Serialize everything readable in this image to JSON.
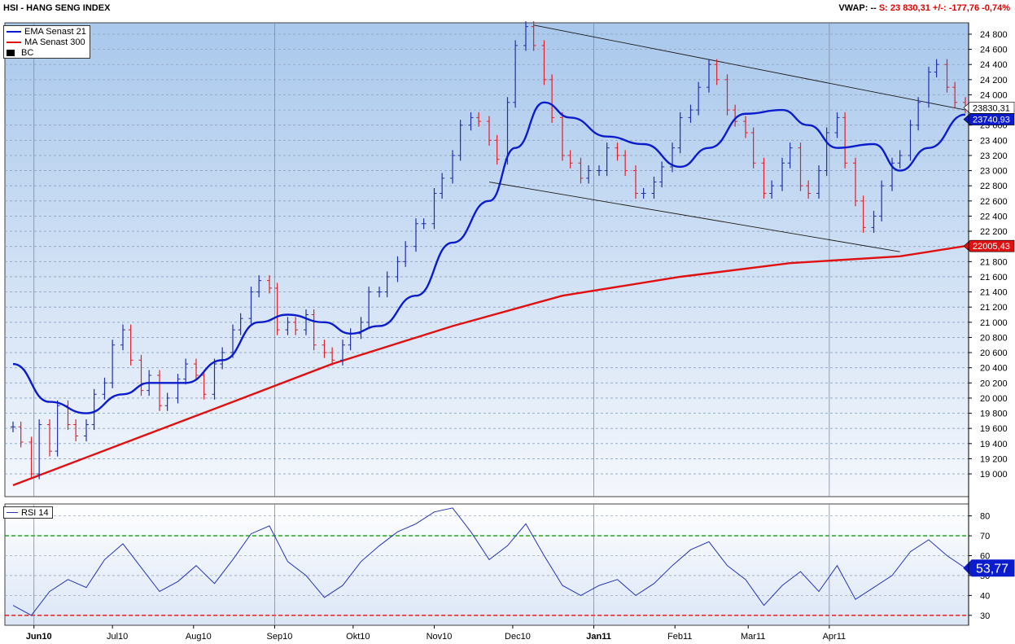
{
  "header": {
    "title": "HSI - HANG SENG INDEX",
    "vwap_label": "VWAP: --",
    "last_label": "S: 23 830,31",
    "change_label": "+/-: -177,76",
    "change_pct": "-0,74%"
  },
  "legend": {
    "ema_label": "EMA  Senast 21",
    "ma_label": "MA  Senast 300",
    "bc_label": "BC",
    "rsi_label": "RSI  14"
  },
  "colors": {
    "plot_top": "#a9c8ec",
    "plot_bottom": "#f4f7fc",
    "up_bar": "#1f2fa8",
    "down_bar": "#e0202a",
    "ema": "#0b1ccc",
    "ma": "#e01010",
    "rsi_line": "#2435b5",
    "overbought": "#149a14",
    "oversold": "#e01010"
  },
  "chart_data": [
    {
      "type": "line",
      "title": "HSI - HANG SENG INDEX",
      "x_tick_labels": [
        "Jun10",
        "Jul10",
        "Aug10",
        "Sep10",
        "Okt10",
        "Nov10",
        "Dec10",
        "Jan11",
        "Feb11",
        "Mar11",
        "Apr11"
      ],
      "y_ticks": [
        19000,
        19200,
        19400,
        19600,
        19800,
        20000,
        20200,
        20400,
        20600,
        20800,
        21000,
        21200,
        21400,
        21600,
        21800,
        22000,
        22200,
        22400,
        22600,
        22800,
        23000,
        23200,
        23400,
        23600,
        23800,
        24000,
        24200,
        24400,
        24600,
        24800
      ],
      "y_tick_labels": [
        "19 000",
        "19 200",
        "19 400",
        "19 600",
        "19 800",
        "20 000",
        "20 200",
        "20 400",
        "20 600",
        "20 800",
        "21 000",
        "21 200",
        "21 400",
        "21 600",
        "21 800",
        "22 000",
        "22 200",
        "22 400",
        "22 600",
        "22 800",
        "23 000",
        "23 200",
        "23 400",
        "23 600",
        "23 800",
        "24 000",
        "24 200",
        "24 400",
        "24 600",
        "24 800"
      ],
      "ylim": [
        18700,
        24950
      ],
      "grid": true,
      "close_series": {
        "name": "HSI",
        "style": "bar (high-low, open/close ticks)",
        "points": [
          [
            "2010-05-24",
            19620
          ],
          [
            "2010-05-27",
            19420
          ],
          [
            "2010-05-31",
            19000
          ],
          [
            "2010-06-03",
            19650
          ],
          [
            "2010-06-07",
            19300
          ],
          [
            "2010-06-10",
            19900
          ],
          [
            "2010-06-14",
            19650
          ],
          [
            "2010-06-17",
            19500
          ],
          [
            "2010-06-21",
            19650
          ],
          [
            "2010-06-24",
            20050
          ],
          [
            "2010-06-28",
            20200
          ],
          [
            "2010-07-01",
            20700
          ],
          [
            "2010-07-05",
            20900
          ],
          [
            "2010-07-08",
            20500
          ],
          [
            "2010-07-12",
            20100
          ],
          [
            "2010-07-15",
            20300
          ],
          [
            "2010-07-19",
            19900
          ],
          [
            "2010-07-22",
            20000
          ],
          [
            "2010-07-26",
            20250
          ],
          [
            "2010-07-29",
            20450
          ],
          [
            "2010-08-02",
            20300
          ],
          [
            "2010-08-05",
            20050
          ],
          [
            "2010-08-09",
            20450
          ],
          [
            "2010-08-12",
            20600
          ],
          [
            "2010-08-16",
            20900
          ],
          [
            "2010-08-19",
            21050
          ],
          [
            "2010-08-23",
            21400
          ],
          [
            "2010-08-26",
            21550
          ],
          [
            "2010-08-30",
            21450
          ],
          [
            "2010-09-02",
            20900
          ],
          [
            "2010-09-06",
            21000
          ],
          [
            "2010-09-09",
            20900
          ],
          [
            "2010-09-13",
            21100
          ],
          [
            "2010-09-16",
            20700
          ],
          [
            "2010-09-20",
            20600
          ],
          [
            "2010-09-23",
            20500
          ],
          [
            "2010-09-27",
            20700
          ],
          [
            "2010-09-30",
            20850
          ],
          [
            "2010-10-04",
            21000
          ],
          [
            "2010-10-07",
            21400
          ],
          [
            "2010-10-11",
            21400
          ],
          [
            "2010-10-14",
            21600
          ],
          [
            "2010-10-18",
            21800
          ],
          [
            "2010-10-21",
            22000
          ],
          [
            "2010-10-25",
            22300
          ],
          [
            "2010-10-28",
            22300
          ],
          [
            "2010-11-01",
            22700
          ],
          [
            "2010-11-04",
            22900
          ],
          [
            "2010-11-08",
            23200
          ],
          [
            "2010-11-11",
            23600
          ],
          [
            "2010-11-15",
            23700
          ],
          [
            "2010-11-18",
            23650
          ],
          [
            "2010-11-22",
            23400
          ],
          [
            "2010-11-25",
            23150
          ],
          [
            "2010-11-29",
            23900
          ],
          [
            "2010-12-02",
            24650
          ],
          [
            "2010-12-06",
            24900
          ],
          [
            "2010-12-09",
            24650
          ],
          [
            "2010-12-13",
            24200
          ],
          [
            "2010-12-16",
            23700
          ],
          [
            "2010-12-20",
            23200
          ],
          [
            "2010-12-23",
            23100
          ],
          [
            "2010-12-27",
            22900
          ],
          [
            "2010-12-30",
            23000
          ],
          [
            "2011-01-03",
            23000
          ],
          [
            "2011-01-06",
            23300
          ],
          [
            "2011-01-10",
            23200
          ],
          [
            "2011-01-13",
            23000
          ],
          [
            "2011-01-17",
            22700
          ],
          [
            "2011-01-20",
            22700
          ],
          [
            "2011-01-24",
            22850
          ],
          [
            "2011-01-27",
            23050
          ],
          [
            "2011-01-31",
            23300
          ],
          [
            "2011-02-03",
            23700
          ],
          [
            "2011-02-07",
            23800
          ],
          [
            "2011-02-10",
            24100
          ],
          [
            "2011-02-14",
            24400
          ],
          [
            "2011-02-17",
            24200
          ],
          [
            "2011-02-21",
            23800
          ],
          [
            "2011-02-24",
            23650
          ],
          [
            "2011-02-28",
            23500
          ],
          [
            "2011-03-03",
            23100
          ],
          [
            "2011-03-07",
            22700
          ],
          [
            "2011-03-10",
            22800
          ],
          [
            "2011-03-14",
            23100
          ],
          [
            "2011-03-17",
            23300
          ],
          [
            "2011-03-21",
            22800
          ],
          [
            "2011-03-24",
            22700
          ],
          [
            "2011-03-28",
            23000
          ],
          [
            "2011-03-31",
            23500
          ],
          [
            "2011-04-04",
            23700
          ],
          [
            "2011-04-07",
            23100
          ],
          [
            "2011-04-11",
            22600
          ],
          [
            "2011-04-14",
            22250
          ],
          [
            "2011-04-18",
            22400
          ],
          [
            "2011-04-21",
            22800
          ],
          [
            "2011-04-25",
            23100
          ],
          [
            "2011-04-28",
            23200
          ],
          [
            "2011-05-02",
            23600
          ],
          [
            "2011-05-05",
            23900
          ],
          [
            "2011-05-09",
            24300
          ],
          [
            "2011-05-12",
            24400
          ],
          [
            "2011-05-16",
            24100
          ],
          [
            "2011-05-19",
            23900
          ],
          [
            "2011-05-23",
            23830
          ]
        ]
      },
      "ema_series": {
        "name": "EMA  Senast 21",
        "points": [
          [
            "2010-05-24",
            20450
          ],
          [
            "2010-06-07",
            19950
          ],
          [
            "2010-06-21",
            19800
          ],
          [
            "2010-07-05",
            20050
          ],
          [
            "2010-07-15",
            20200
          ],
          [
            "2010-07-29",
            20200
          ],
          [
            "2010-08-12",
            20500
          ],
          [
            "2010-08-26",
            21000
          ],
          [
            "2010-09-06",
            21100
          ],
          [
            "2010-09-20",
            21000
          ],
          [
            "2010-09-30",
            20850
          ],
          [
            "2010-10-11",
            20950
          ],
          [
            "2010-10-25",
            21350
          ],
          [
            "2010-11-08",
            22050
          ],
          [
            "2010-11-22",
            22600
          ],
          [
            "2010-12-02",
            23300
          ],
          [
            "2010-12-13",
            23900
          ],
          [
            "2010-12-23",
            23700
          ],
          [
            "2011-01-06",
            23450
          ],
          [
            "2011-01-20",
            23350
          ],
          [
            "2011-02-03",
            23050
          ],
          [
            "2011-02-14",
            23300
          ],
          [
            "2011-02-28",
            23750
          ],
          [
            "2011-03-14",
            23800
          ],
          [
            "2011-03-24",
            23600
          ],
          [
            "2011-04-04",
            23300
          ],
          [
            "2011-04-18",
            23350
          ],
          [
            "2011-04-28",
            23000
          ],
          [
            "2011-05-09",
            23300
          ],
          [
            "2011-05-23",
            23740
          ]
        ]
      },
      "ma_series": {
        "name": "MA  Senast 300",
        "points": [
          [
            "2010-05-24",
            18850
          ],
          [
            "2010-07-05",
            19400
          ],
          [
            "2010-08-16",
            19950
          ],
          [
            "2010-09-23",
            20450
          ],
          [
            "2010-11-08",
            20950
          ],
          [
            "2010-12-20",
            21350
          ],
          [
            "2011-02-03",
            21600
          ],
          [
            "2011-03-17",
            21780
          ],
          [
            "2011-04-28",
            21870
          ],
          [
            "2011-05-23",
            22005.43
          ]
        ]
      },
      "price_tags": [
        "23830,31",
        "23740,93",
        "22005,43"
      ]
    },
    {
      "type": "line",
      "title": "RSI  14",
      "y_ticks": [
        30,
        40,
        50,
        60,
        70,
        80
      ],
      "y_tick_labels": [
        "30",
        "40",
        "50",
        "60",
        "70",
        "80"
      ],
      "ylim": [
        25,
        86
      ],
      "grid": true,
      "overbought": 70,
      "oversold": 30,
      "current_label": "53,77",
      "series": [
        {
          "name": "RSI  14",
          "points": [
            [
              "2010-05-24",
              35
            ],
            [
              "2010-05-31",
              30
            ],
            [
              "2010-06-07",
              42
            ],
            [
              "2010-06-14",
              48
            ],
            [
              "2010-06-21",
              44
            ],
            [
              "2010-06-28",
              58
            ],
            [
              "2010-07-05",
              66
            ],
            [
              "2010-07-12",
              54
            ],
            [
              "2010-07-19",
              42
            ],
            [
              "2010-07-26",
              47
            ],
            [
              "2010-08-02",
              55
            ],
            [
              "2010-08-09",
              46
            ],
            [
              "2010-08-16",
              58
            ],
            [
              "2010-08-23",
              71
            ],
            [
              "2010-08-30",
              75
            ],
            [
              "2010-09-06",
              57
            ],
            [
              "2010-09-13",
              50
            ],
            [
              "2010-09-20",
              39
            ],
            [
              "2010-09-27",
              45
            ],
            [
              "2010-10-04",
              57
            ],
            [
              "2010-10-11",
              65
            ],
            [
              "2010-10-18",
              72
            ],
            [
              "2010-10-25",
              76
            ],
            [
              "2010-11-01",
              82
            ],
            [
              "2010-11-08",
              84
            ],
            [
              "2010-11-15",
              72
            ],
            [
              "2010-11-22",
              58
            ],
            [
              "2010-11-29",
              65
            ],
            [
              "2010-12-06",
              76
            ],
            [
              "2010-12-13",
              60
            ],
            [
              "2010-12-20",
              45
            ],
            [
              "2010-12-27",
              40
            ],
            [
              "2011-01-03",
              45
            ],
            [
              "2011-01-10",
              48
            ],
            [
              "2011-01-17",
              40
            ],
            [
              "2011-01-24",
              46
            ],
            [
              "2011-01-31",
              55
            ],
            [
              "2011-02-07",
              63
            ],
            [
              "2011-02-14",
              67
            ],
            [
              "2011-02-21",
              55
            ],
            [
              "2011-02-28",
              48
            ],
            [
              "2011-03-07",
              35
            ],
            [
              "2011-03-14",
              45
            ],
            [
              "2011-03-21",
              52
            ],
            [
              "2011-03-28",
              42
            ],
            [
              "2011-04-04",
              55
            ],
            [
              "2011-04-11",
              38
            ],
            [
              "2011-04-18",
              44
            ],
            [
              "2011-04-25",
              50
            ],
            [
              "2011-05-02",
              62
            ],
            [
              "2011-05-09",
              68
            ],
            [
              "2011-05-16",
              60
            ],
            [
              "2011-05-23",
              53.77
            ]
          ]
        }
      ]
    }
  ]
}
